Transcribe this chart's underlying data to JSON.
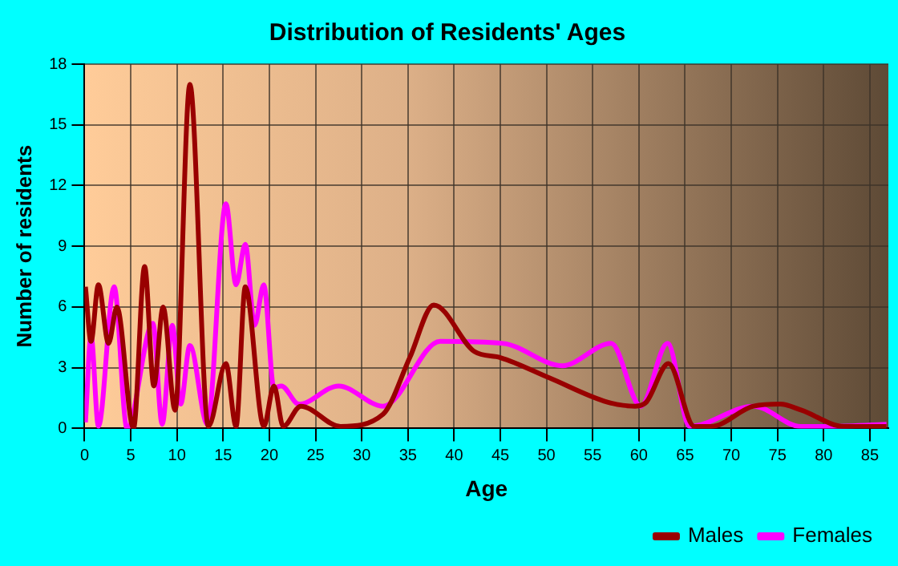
{
  "chart_data": {
    "type": "line",
    "title": "Distribution of Residents' Ages",
    "xlabel": "Age",
    "ylabel": "Number of residents",
    "xlim": [
      0,
      87
    ],
    "xticks": [
      0,
      5,
      10,
      15,
      20,
      25,
      30,
      35,
      40,
      45,
      50,
      55,
      60,
      65,
      70,
      75,
      80,
      85
    ],
    "ylim": [
      0,
      18
    ],
    "yticks": [
      0,
      3,
      6,
      9,
      12,
      15,
      18
    ],
    "grid": true,
    "legend": "bottom right",
    "marker": "none",
    "line_style": "solid",
    "series": [
      {
        "name": "Males",
        "color": "#990000",
        "x": [
          0.1,
          0.7,
          1.5,
          2.6,
          3.5,
          5.3,
          6.5,
          7.5,
          8.5,
          9.8,
          11.4,
          13.4,
          15.3,
          16.4,
          17.4,
          19.4,
          20.5,
          21.5,
          23.4,
          27.7,
          32.3,
          35.2,
          37.8,
          42.2,
          45,
          50.3,
          56.6,
          59.6,
          60.8,
          63.2,
          66,
          67.8,
          72.4,
          75.3,
          77.6,
          82.2,
          86.8
        ],
        "values": [
          7,
          4.3,
          7.1,
          4.2,
          6,
          0,
          8,
          2.1,
          6,
          0.9,
          17,
          0.1,
          3.2,
          0.1,
          7,
          0.1,
          2.1,
          0.1,
          1.1,
          0.1,
          0.7,
          3.5,
          6.1,
          3.8,
          3.5,
          2.5,
          1.3,
          1.1,
          1.3,
          3.2,
          0.1,
          0.1,
          1.1,
          1.2,
          0.9,
          0.1,
          0.1
        ]
      },
      {
        "name": "Females",
        "color": "#ff00ff",
        "x": [
          0.1,
          0.7,
          1.5,
          3.2,
          4.6,
          7.4,
          8.4,
          9.5,
          10.4,
          11.4,
          13.3,
          15.3,
          16.4,
          17.4,
          18.4,
          19.4,
          20.5,
          21.3,
          23.2,
          27.5,
          32.3,
          38.5,
          45.3,
          51.7,
          57,
          60.2,
          63.1,
          65.5,
          72.4,
          77.5,
          80,
          86.8
        ],
        "values": [
          0.3,
          4.6,
          0.1,
          7,
          0,
          5.2,
          0.2,
          5.1,
          1.2,
          4.1,
          0.2,
          11.1,
          7.1,
          9.1,
          5.1,
          7.1,
          2,
          2.1,
          1.2,
          2.1,
          1.1,
          4.3,
          4.2,
          3.1,
          4.2,
          1.1,
          4.2,
          0.1,
          1.1,
          0.1,
          0.1,
          0.2
        ]
      }
    ]
  }
}
